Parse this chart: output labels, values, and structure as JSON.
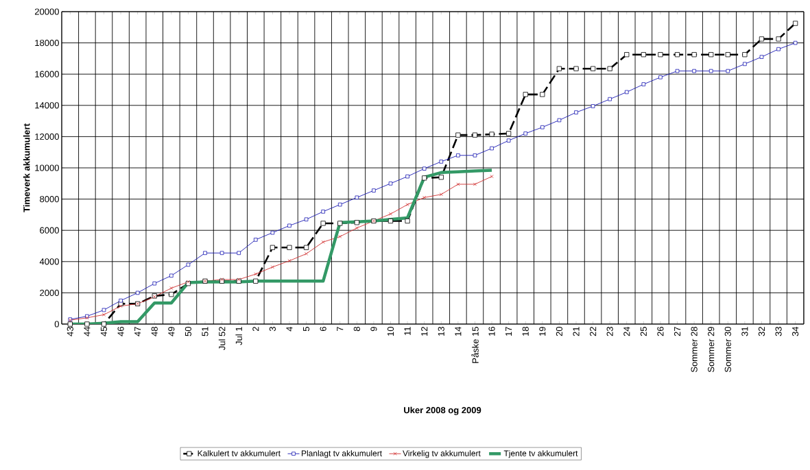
{
  "chart_data": {
    "type": "line",
    "xlabel": "Uker 2008  og 2009",
    "ylabel": "Timeverk akkumulert",
    "categories": [
      "43",
      "44",
      "45",
      "46",
      "47",
      "48",
      "49",
      "50",
      "51",
      "Jul 52",
      "Jul 1",
      "2",
      "3",
      "4",
      "5",
      "6",
      "7",
      "8",
      "9",
      "10",
      "11",
      "12",
      "13",
      "14",
      "Påske 15",
      "16",
      "17",
      "18",
      "19",
      "20",
      "21",
      "22",
      "23",
      "24",
      "25",
      "26",
      "27",
      "Sommer 28",
      "Sommer 29",
      "Sommer 30",
      "31",
      "32",
      "33",
      "34"
    ],
    "series": [
      {
        "name": "Kalkulert  tv akkumulert",
        "color": "#000000",
        "marker": "square",
        "line_style": "dashed",
        "values": [
          0,
          0,
          0,
          1300,
          1300,
          1800,
          1900,
          2600,
          2750,
          2750,
          2750,
          2750,
          4900,
          4900,
          4900,
          6450,
          6450,
          6500,
          6600,
          6600,
          6600,
          9350,
          9400,
          12100,
          12100,
          12150,
          12200,
          14700,
          14700,
          16350,
          16350,
          16350,
          16350,
          17250,
          17250,
          17250,
          17250,
          17250,
          17250,
          17250,
          17250,
          18250,
          18250,
          19250
        ]
      },
      {
        "name": "Planlagt  tv akkumulert",
        "color": "#1a1ab3",
        "marker": "square",
        "line_style": "solid",
        "values": [
          300,
          500,
          900,
          1500,
          2000,
          2600,
          3100,
          3800,
          4550,
          4550,
          4550,
          5400,
          5850,
          6300,
          6700,
          7200,
          7650,
          8100,
          8550,
          9000,
          9450,
          9950,
          10400,
          10800,
          10800,
          11250,
          11750,
          12200,
          12600,
          13050,
          13550,
          13950,
          14400,
          14850,
          15350,
          15800,
          16200,
          16200,
          16200,
          16200,
          16650,
          17100,
          17600,
          18000
        ]
      },
      {
        "name": "Virkelig  tv akkumulert",
        "color": "#d03030",
        "marker": "cross",
        "line_style": "solid",
        "values": [
          250,
          400,
          600,
          1150,
          1300,
          1750,
          2300,
          2700,
          2750,
          2850,
          2850,
          3200,
          3650,
          4050,
          4500,
          5250,
          5600,
          6150,
          6600,
          7050,
          7650,
          8100,
          8300,
          8950,
          8950,
          9450,
          null,
          null,
          null,
          null,
          null,
          null,
          null,
          null,
          null,
          null,
          null,
          null,
          null,
          null,
          null,
          null,
          null,
          null
        ]
      },
      {
        "name": "Tjente  tv akkumulert",
        "color": "#339966",
        "marker": "none",
        "line_style": "solid",
        "values": [
          0,
          0,
          50,
          150,
          150,
          1350,
          1350,
          2650,
          2700,
          2700,
          2700,
          2750,
          2750,
          2750,
          2750,
          2750,
          6500,
          6550,
          6600,
          6700,
          6800,
          9400,
          9700,
          9750,
          9800,
          9850,
          null,
          null,
          null,
          null,
          null,
          null,
          null,
          null,
          null,
          null,
          null,
          null,
          null,
          null,
          null,
          null,
          null,
          null
        ]
      }
    ],
    "ylim": [
      0,
      20000
    ],
    "yticks": [
      0,
      2000,
      4000,
      6000,
      8000,
      10000,
      12000,
      14000,
      16000,
      18000,
      20000
    ],
    "grid": true,
    "legend": "bottom"
  }
}
